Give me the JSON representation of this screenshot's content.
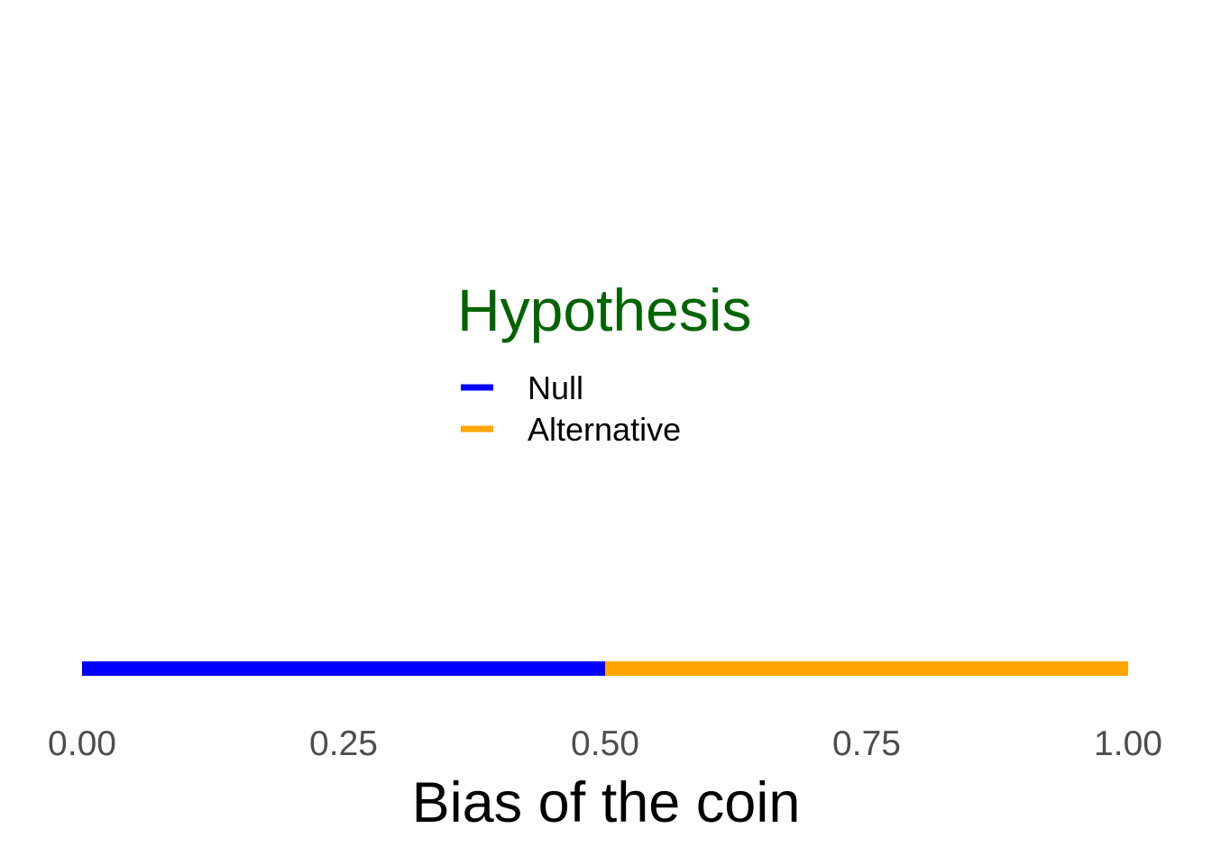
{
  "chart_data": {
    "type": "line",
    "title": "",
    "xlabel": "Bias of the coin",
    "ylabel": "",
    "xlim": [
      0,
      1
    ],
    "grid": false,
    "legend": {
      "title": "Hypothesis",
      "title_color": "#006400",
      "placement": "center",
      "entries": [
        {
          "label": "Null",
          "color": "#0000ff"
        },
        {
          "label": "Alternative",
          "color": "#ffa500"
        }
      ]
    },
    "series": [
      {
        "name": "Null",
        "color": "#0000ff",
        "x": [
          0.0,
          0.5
        ]
      },
      {
        "name": "Alternative",
        "color": "#ffa500",
        "x": [
          0.5,
          1.0
        ]
      }
    ],
    "x_ticks": [
      {
        "value": 0.0,
        "label": "0.00"
      },
      {
        "value": 0.25,
        "label": "0.25"
      },
      {
        "value": 0.5,
        "label": "0.50"
      },
      {
        "value": 0.75,
        "label": "0.75"
      },
      {
        "value": 1.0,
        "label": "1.00"
      }
    ]
  }
}
